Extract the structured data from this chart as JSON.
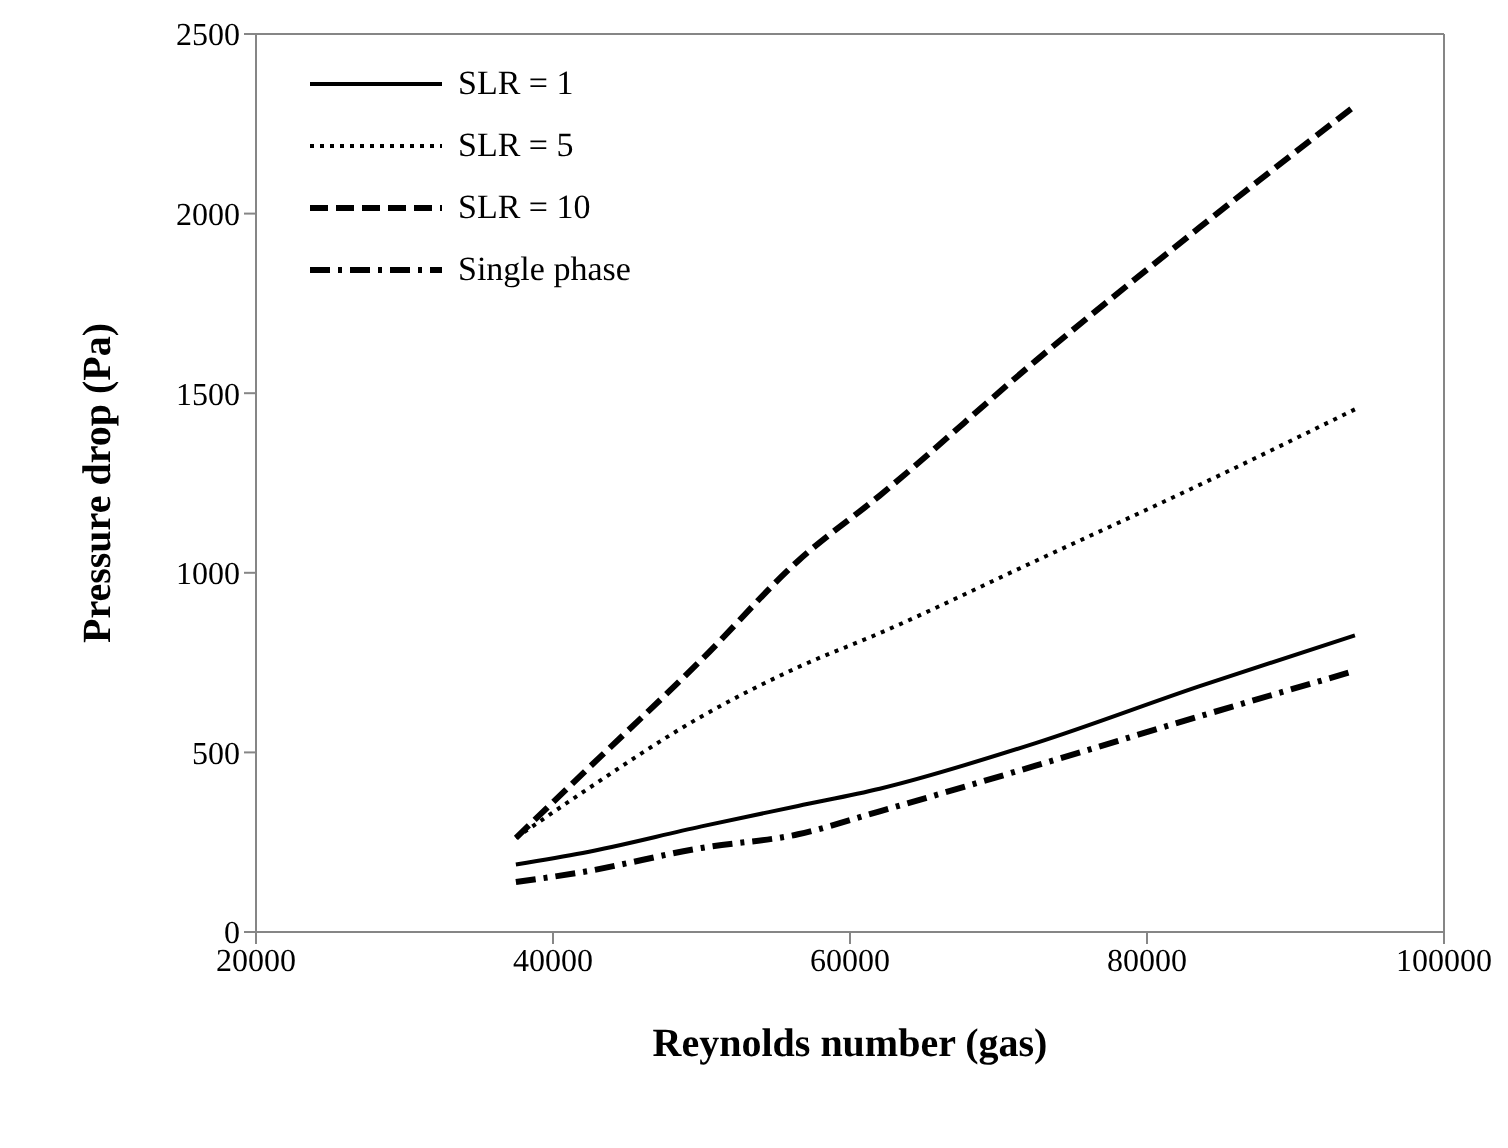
{
  "chart_data": {
    "type": "line",
    "xlabel": "Reynolds number (gas)",
    "ylabel": "Pressure drop (Pa)",
    "x": [
      37500,
      42000,
      50000,
      56500,
      62000,
      72500,
      83500,
      94000
    ],
    "series": [
      {
        "name": "SLR = 1",
        "color": "#000000",
        "line_style": "solid",
        "values": [
          188,
          220,
          294,
          351,
          399,
          526,
          684,
          826
        ]
      },
      {
        "name": "SLR = 5",
        "color": "#000000",
        "line_style": "dotted",
        "values": [
          262,
          389,
          600,
          737,
          832,
          1033,
          1244,
          1455
        ]
      },
      {
        "name": "SLR = 10",
        "color": "#000000",
        "line_style": "dashed",
        "values": [
          262,
          441,
          758,
          1033,
          1215,
          1590,
          1960,
          2300
        ]
      },
      {
        "name": "Single phase",
        "color": "#000000",
        "line_style": "dashdot",
        "values": [
          139,
          167,
          234,
          272,
          336,
          463,
          600,
          727
        ]
      }
    ],
    "xlim": [
      20000,
      100000
    ],
    "xticks": [
      20000,
      40000,
      60000,
      80000,
      100000
    ],
    "ylim": [
      0,
      2500
    ],
    "yticks": [
      0,
      500,
      1000,
      1500,
      2000,
      2500
    ],
    "grid": false,
    "legend": "top left",
    "marker": "none"
  }
}
